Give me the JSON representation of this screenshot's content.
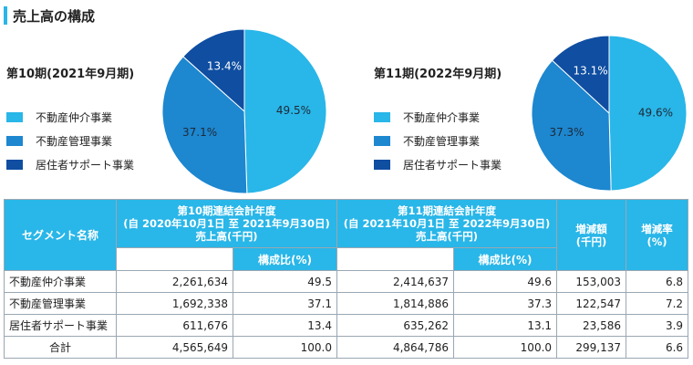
{
  "page": {
    "title": "売上高の構成"
  },
  "legend": {
    "labels": [
      "不動産仲介事業",
      "不動産管理事業",
      "居住者サポート事業"
    ],
    "colors": [
      "#29b6e8",
      "#1d87d0",
      "#0f4ea1"
    ]
  },
  "chart_data": [
    {
      "type": "pie",
      "title": "第10期(2021年9月期)",
      "categories": [
        "不動産仲介事業",
        "不動産管理事業",
        "居住者サポート事業"
      ],
      "values": [
        49.5,
        37.1,
        13.4
      ],
      "labels": [
        "49.5%",
        "37.1%",
        "13.4%"
      ],
      "legend_position": "left"
    },
    {
      "type": "pie",
      "title": "第11期(2022年9月期)",
      "categories": [
        "不動産仲介事業",
        "不動産管理事業",
        "居住者サポート事業"
      ],
      "values": [
        49.6,
        37.3,
        13.1
      ],
      "labels": [
        "49.6%",
        "37.3%",
        "13.1%"
      ],
      "legend_position": "left"
    }
  ],
  "table": {
    "header": {
      "segment": "セグメント名称",
      "p10": [
        "第10期連結会計年度",
        "(自 2020年10月1日 至 2021年9月30日)",
        "売上高(千円)"
      ],
      "p11": [
        "第11期連結会計年度",
        "(自 2021年10月1日 至 2022年9月30日)",
        "売上高(千円)"
      ],
      "ratio": "構成比(%)",
      "change": [
        "増減額",
        "(千円)"
      ],
      "rate": [
        "増減率",
        "(%)"
      ]
    },
    "rows": [
      {
        "name": "不動産仲介事業",
        "s10": "2,261,634",
        "r10": "49.5",
        "s11": "2,414,637",
        "r11": "49.6",
        "diff": "153,003",
        "rate": "6.8"
      },
      {
        "name": "不動産管理事業",
        "s10": "1,692,338",
        "r10": "37.1",
        "s11": "1,814,886",
        "r11": "37.3",
        "diff": "122,547",
        "rate": "7.2"
      },
      {
        "name": "居住者サポート事業",
        "s10": "611,676",
        "r10": "13.4",
        "s11": "635,262",
        "r11": "13.1",
        "diff": "23,586",
        "rate": "3.9"
      },
      {
        "name": "合計",
        "s10": "4,565,649",
        "r10": "100.0",
        "s11": "4,864,786",
        "r11": "100.0",
        "diff": "299,137",
        "rate": "6.6"
      }
    ]
  }
}
